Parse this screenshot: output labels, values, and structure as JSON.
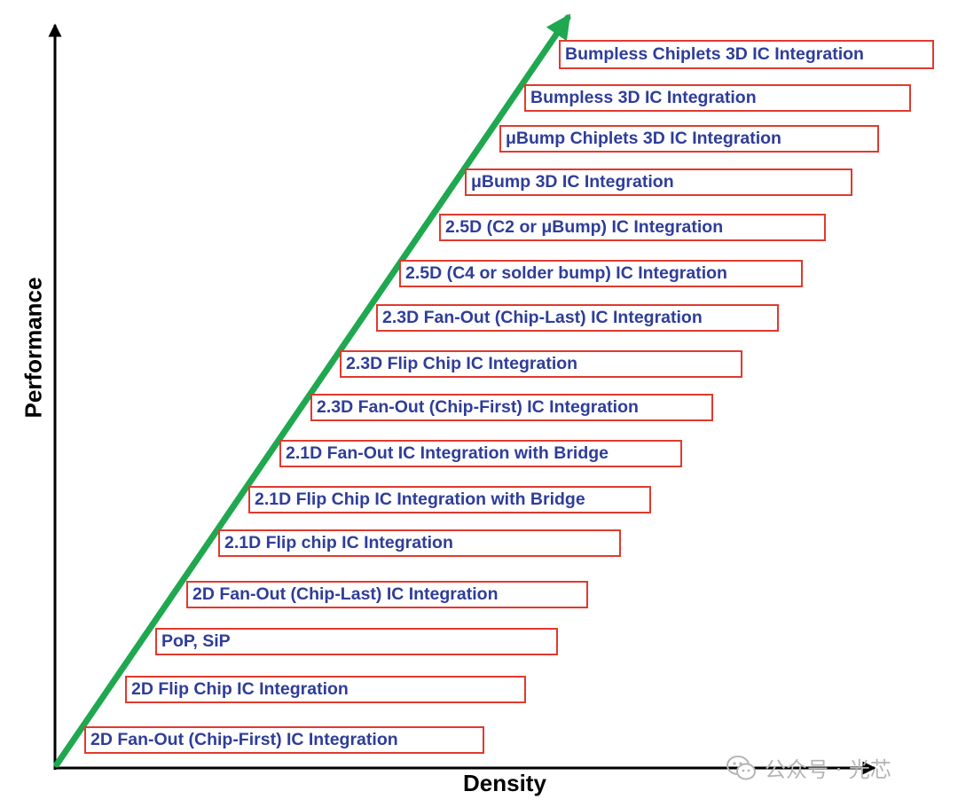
{
  "axes": {
    "x_label": "Density",
    "y_label": "Performance"
  },
  "stages": [
    {
      "label": "2D Fan-Out (Chip-First) IC Integration"
    },
    {
      "label": "2D Flip Chip IC Integration"
    },
    {
      "label": "PoP, SiP"
    },
    {
      "label": "2D Fan-Out (Chip-Last) IC Integration"
    },
    {
      "label": "2.1D Flip chip IC Integration"
    },
    {
      "label": "2.1D Flip Chip IC Integration with Bridge"
    },
    {
      "label": "2.1D Fan-Out IC Integration with Bridge"
    },
    {
      "label": "2.3D Fan-Out (Chip-First) IC Integration"
    },
    {
      "label": "2.3D Flip Chip IC Integration"
    },
    {
      "label": "2.3D Fan-Out (Chip-Last) IC Integration"
    },
    {
      "label": "2.5D (C4 or solder bump) IC Integration"
    },
    {
      "label": "2.5D (C2 or μBump) IC Integration"
    },
    {
      "label": "μBump 3D IC Integration"
    },
    {
      "label": "μBump Chiplets 3D IC Integration"
    },
    {
      "label": "Bumpless 3D IC Integration"
    },
    {
      "label": "Bumpless Chiplets 3D IC Integration"
    }
  ],
  "watermark": {
    "icon": "wechat-icon",
    "text": "公众号 · 光芯"
  },
  "colors": {
    "trend_arrow": "#1fa84f",
    "box_border": "#e03a2e",
    "label_text": "#2f3d9a",
    "axis": "#000000"
  }
}
